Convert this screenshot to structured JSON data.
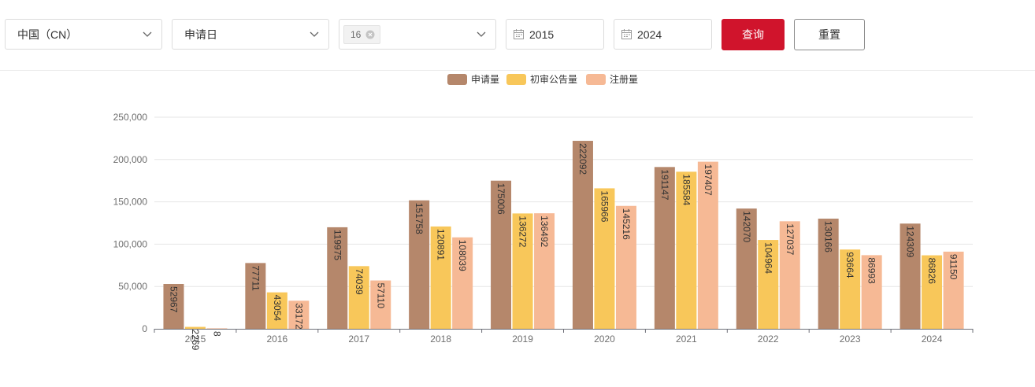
{
  "filters": {
    "region": "中国（CN）",
    "date_type": "申请日",
    "class_tag": "16",
    "year_from": "2015",
    "year_to": "2024",
    "query_button": "查询",
    "reset_button": "重置"
  },
  "colors": {
    "primary": "#d0142c",
    "series": [
      "#b5876b",
      "#f8c75a",
      "#f6b995"
    ]
  },
  "icons": [
    "chevron-down-icon",
    "close-circle-icon",
    "calendar-icon"
  ],
  "chart_data": {
    "type": "bar",
    "title": "",
    "xlabel": "",
    "ylabel": "",
    "ylim": [
      0,
      250000
    ],
    "yticks": [
      0,
      50000,
      100000,
      150000,
      200000,
      250000
    ],
    "ytick_labels": [
      "0",
      "50,000",
      "100,000",
      "150,000",
      "200,000",
      "250,000"
    ],
    "grid": true,
    "legend_position": "top-center",
    "categories": [
      "2015",
      "2016",
      "2017",
      "2018",
      "2019",
      "2020",
      "2021",
      "2022",
      "2023",
      "2024"
    ],
    "series": [
      {
        "name": "申请量",
        "color": "#b5876b",
        "values": [
          52967,
          77711,
          119975,
          151758,
          175006,
          222092,
          191147,
          142070,
          130166,
          124309
        ]
      },
      {
        "name": "初审公告量",
        "color": "#f8c75a",
        "values": [
          2269,
          43054,
          74039,
          120891,
          136272,
          165966,
          185584,
          104964,
          93664,
          86826
        ]
      },
      {
        "name": "注册量",
        "color": "#f6b995",
        "values": [
          8,
          33172,
          57110,
          108039,
          136492,
          145216,
          197407,
          127037,
          86993,
          91150
        ]
      }
    ]
  }
}
